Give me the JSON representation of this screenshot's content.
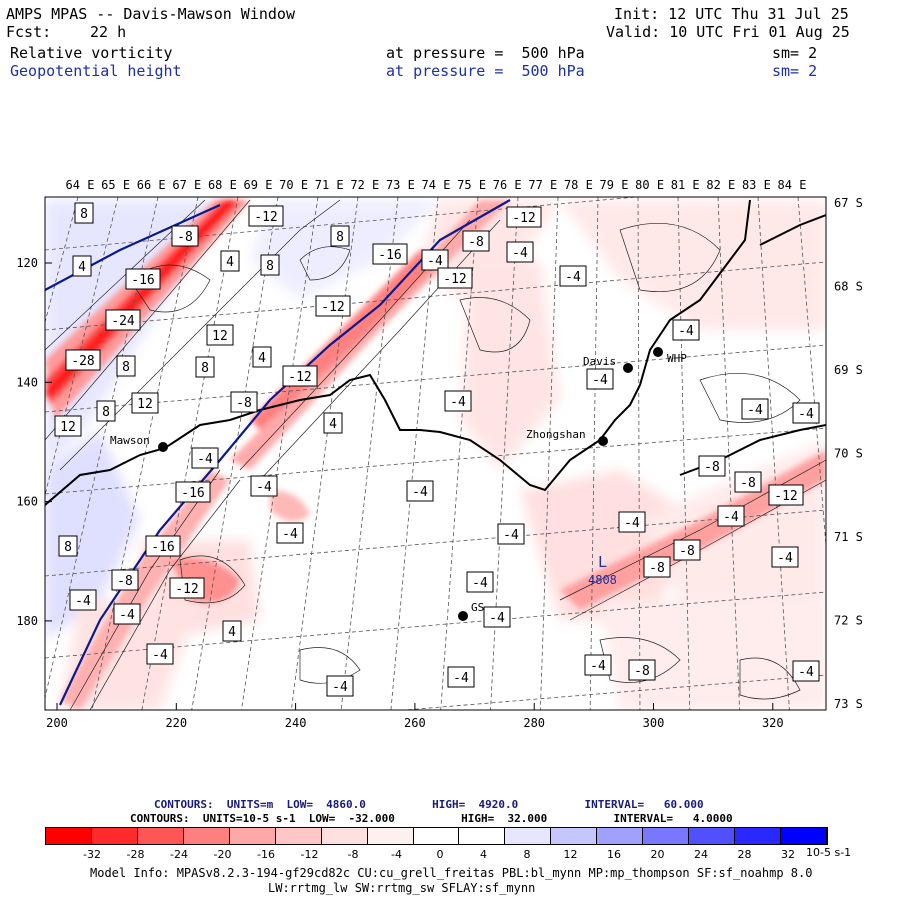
{
  "header": {
    "title": "AMPS MPAS -- Davis-Mawson Window",
    "init": "Init: 12 UTC Thu 31 Jul 25",
    "fcst_label": "Fcst:",
    "fcst_value": "22 h",
    "valid": "Valid: 10 UTC Fri 01 Aug 25",
    "field1": {
      "name": "Relative vorticity",
      "level": "at pressure =  500 hPa",
      "smooth": "sm= 2"
    },
    "field2": {
      "name": "Geopotential height",
      "level": "at pressure =  500 hPa",
      "smooth": "sm= 2"
    }
  },
  "map": {
    "top_lon_labels": [
      "64 E",
      "65 E",
      "66 E",
      "67 E",
      "68 E",
      "69 E",
      "70 E",
      "71 E",
      "72 E",
      "73 E",
      "74 E",
      "75 E",
      "76 E",
      "77 E",
      "78 E",
      "79 E",
      "80 E",
      "81 E",
      "82 E",
      "83 E",
      "84 E"
    ],
    "right_lat_labels": [
      "67 S",
      "68 S",
      "69 S",
      "70 S",
      "71 S",
      "72 S",
      "73 S"
    ],
    "left_y_ticks": [
      "120",
      "140",
      "160",
      "180"
    ],
    "bottom_x_ticks": [
      "200",
      "220",
      "240",
      "260",
      "280",
      "300",
      "320"
    ],
    "stations": [
      {
        "name": "Mawson",
        "label": "Mawson"
      },
      {
        "name": "Davis",
        "label": "Davis"
      },
      {
        "name": "Zhongshan",
        "label": "Zhongshan"
      },
      {
        "name": "WHP",
        "label": "WHP"
      },
      {
        "name": "GS",
        "label": "GS"
      }
    ],
    "contour_labels": [
      "8",
      "4",
      "-12",
      "-8",
      "4",
      "8",
      "8",
      "-16",
      "-4",
      "-8",
      "-12",
      "-4",
      "-24",
      "12",
      "-16",
      "-12",
      "-28",
      "8",
      "8",
      "4",
      "-12",
      "-4",
      "-4",
      "12",
      "8",
      "12",
      "-8",
      "-12",
      "-4",
      "-4",
      "4",
      "-4",
      "-4",
      "-4",
      "-8",
      "-4",
      "-16",
      "-8",
      "-12",
      "-4",
      "-16",
      "-4",
      "-4",
      "-4",
      "-4",
      "-8",
      "-4",
      "-8",
      "8",
      "-12",
      "-8",
      "-4",
      "4",
      "-4",
      "-4",
      "-4",
      "-4",
      "-4",
      "-4",
      "-4",
      "-8",
      "-4"
    ],
    "low_label": "L",
    "low_value": "4808"
  },
  "contours_info": {
    "line1": "CONTOURS:  UNITS=m  LOW=  4860.0          HIGH=  4920.0          INTERVAL=   60.000",
    "line2": "CONTOURS:  UNITS=10-5 s-1  LOW=  -32.000          HIGH=  32.000          INTERVAL=   4.0000"
  },
  "colorbar": {
    "colors": [
      "#ff0000",
      "#ff2b2b",
      "#ff5555",
      "#ff7f7f",
      "#ffa8a8",
      "#ffc6c6",
      "#ffe0e0",
      "#fff0f0",
      "#ffffff",
      "#ffffff",
      "#e6e6ff",
      "#c6c6ff",
      "#a0a0ff",
      "#7878ff",
      "#5050ff",
      "#2828ff",
      "#0000ff"
    ],
    "labels": [
      "-32",
      "-28",
      "-24",
      "-20",
      "-16",
      "-12",
      "-8",
      "-4",
      "0",
      "4",
      "8",
      "12",
      "16",
      "20",
      "24",
      "28",
      "32"
    ],
    "units": "10-5 s-1"
  },
  "model_info": {
    "line1": "Model Info: MPASv8.2.3-194-gf29cd82c CU:cu_grell_freitas PBL:bl_mynn MP:mp_thompson SF:sf_noahmp 8.0",
    "line2": "LW:rrtmg_lw SW:rrtmg_sw SFLAY:sf_mynn"
  },
  "colors": {
    "accent_blue": "#1c2fa8",
    "height_contour": "#0a1a8c"
  }
}
